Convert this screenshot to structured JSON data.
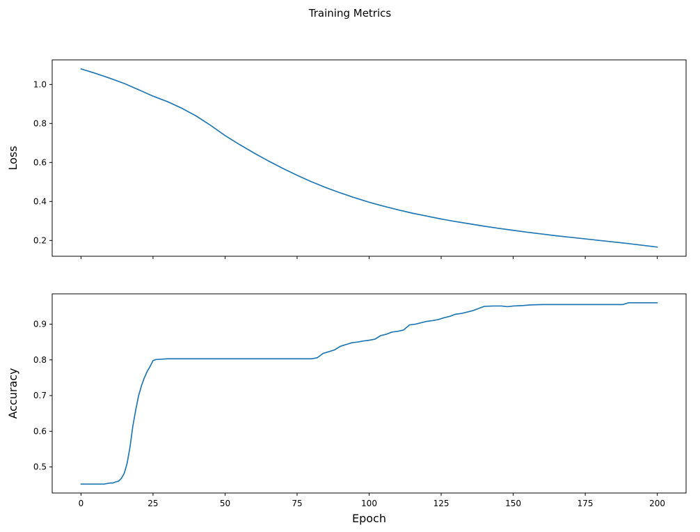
{
  "figure": {
    "title": "Training Metrics",
    "line_color": "#1f77b4",
    "background": "#ffffff"
  },
  "chart_data": [
    {
      "type": "line",
      "ylabel": "Loss",
      "xlabel": "",
      "xlim": [
        -10,
        210
      ],
      "ylim": [
        0.119,
        1.126
      ],
      "xticks": [
        0,
        25,
        50,
        75,
        100,
        125,
        150,
        175,
        200
      ],
      "yticks": [
        0.2,
        0.4,
        0.6,
        0.8,
        1.0
      ],
      "show_xtick_labels": false,
      "grid": false,
      "legend": "none",
      "series": [
        {
          "name": "loss",
          "x": [
            0,
            5,
            10,
            15,
            20,
            25,
            30,
            35,
            40,
            45,
            50,
            55,
            60,
            65,
            70,
            75,
            80,
            85,
            90,
            95,
            100,
            105,
            110,
            115,
            120,
            125,
            130,
            135,
            140,
            145,
            150,
            155,
            160,
            165,
            170,
            175,
            180,
            185,
            190,
            195,
            200
          ],
          "y": [
            1.08,
            1.057,
            1.032,
            1.005,
            0.973,
            0.94,
            0.912,
            0.878,
            0.838,
            0.79,
            0.738,
            0.692,
            0.649,
            0.608,
            0.57,
            0.534,
            0.501,
            0.471,
            0.444,
            0.419,
            0.396,
            0.376,
            0.357,
            0.34,
            0.325,
            0.31,
            0.297,
            0.285,
            0.273,
            0.262,
            0.252,
            0.242,
            0.233,
            0.224,
            0.216,
            0.208,
            0.2,
            0.192,
            0.184,
            0.175,
            0.166
          ]
        }
      ]
    },
    {
      "type": "line",
      "ylabel": "Accuracy",
      "xlabel": "Epoch",
      "xlim": [
        -10,
        210
      ],
      "ylim": [
        0.427,
        0.985
      ],
      "xticks": [
        0,
        25,
        50,
        75,
        100,
        125,
        150,
        175,
        200
      ],
      "yticks": [
        0.5,
        0.6,
        0.7,
        0.8,
        0.9
      ],
      "show_xtick_labels": true,
      "grid": false,
      "legend": "none",
      "series": [
        {
          "name": "accuracy",
          "x": [
            0,
            2,
            4,
            6,
            8,
            10,
            11,
            12,
            13,
            14,
            15,
            16,
            17,
            18,
            19,
            20,
            21,
            22,
            23,
            24,
            25,
            26,
            28,
            30,
            35,
            40,
            45,
            50,
            55,
            60,
            65,
            70,
            75,
            80,
            82,
            84,
            86,
            88,
            90,
            92,
            94,
            96,
            98,
            100,
            102,
            104,
            106,
            108,
            110,
            112,
            114,
            116,
            118,
            120,
            122,
            124,
            126,
            128,
            130,
            132,
            134,
            136,
            138,
            140,
            143,
            146,
            148,
            150,
            153,
            156,
            160,
            165,
            170,
            175,
            180,
            185,
            188,
            190,
            195,
            200
          ],
          "y": [
            0.452,
            0.452,
            0.452,
            0.452,
            0.452,
            0.455,
            0.455,
            0.458,
            0.46,
            0.468,
            0.482,
            0.51,
            0.555,
            0.615,
            0.66,
            0.7,
            0.728,
            0.75,
            0.768,
            0.782,
            0.798,
            0.801,
            0.802,
            0.803,
            0.803,
            0.803,
            0.803,
            0.803,
            0.803,
            0.803,
            0.803,
            0.803,
            0.803,
            0.803,
            0.806,
            0.818,
            0.823,
            0.828,
            0.838,
            0.843,
            0.848,
            0.85,
            0.853,
            0.855,
            0.858,
            0.868,
            0.872,
            0.878,
            0.88,
            0.884,
            0.898,
            0.9,
            0.904,
            0.908,
            0.91,
            0.913,
            0.918,
            0.922,
            0.928,
            0.93,
            0.934,
            0.938,
            0.944,
            0.95,
            0.951,
            0.951,
            0.949,
            0.951,
            0.952,
            0.954,
            0.955,
            0.955,
            0.955,
            0.955,
            0.955,
            0.955,
            0.955,
            0.96,
            0.96,
            0.96
          ]
        }
      ]
    }
  ]
}
